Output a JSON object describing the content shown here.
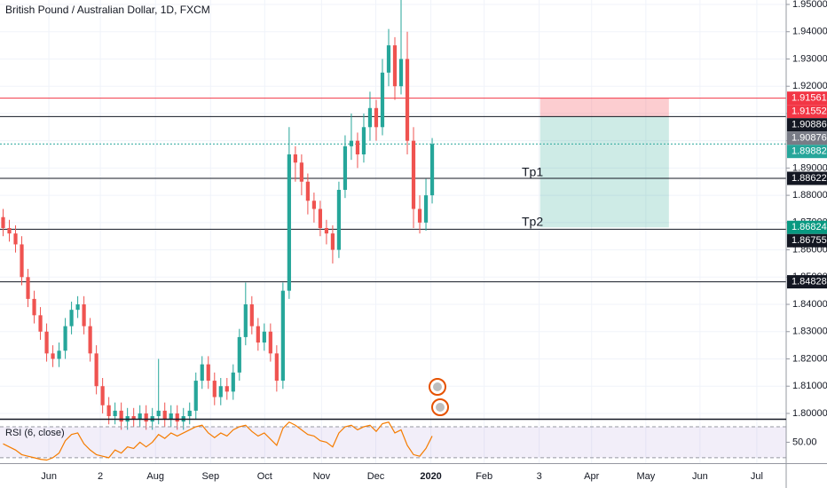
{
  "chart_data": {
    "type": "candlestick",
    "title": "British Pound / Australian Dollar, 1D, FXCM",
    "up_color": "#26a69a",
    "down_color": "#ef5350",
    "xlim": [
      0,
      126.43
    ],
    "xticks": [
      {
        "value": 7.86,
        "label": "Jun"
      },
      {
        "value": 16.14,
        "label": "2"
      },
      {
        "value": 25,
        "label": "Aug"
      },
      {
        "value": 33.86,
        "label": "Sep"
      },
      {
        "value": 42.57,
        "label": "Oct"
      },
      {
        "value": 51.71,
        "label": "Nov"
      },
      {
        "value": 60.43,
        "label": "Dec"
      },
      {
        "value": 69.29,
        "label": "2020"
      },
      {
        "value": 77.86,
        "label": "Feb"
      },
      {
        "value": 86.71,
        "label": "3"
      },
      {
        "value": 95.14,
        "label": "Apr"
      },
      {
        "value": 103.86,
        "label": "May"
      },
      {
        "value": 112.57,
        "label": "Jun"
      },
      {
        "value": 121.71,
        "label": "Jul"
      }
    ],
    "ylim": [
      1.79803,
      1.95163
    ],
    "yticks": [
      {
        "value": 1.8,
        "label": "1.80000"
      },
      {
        "value": 1.81,
        "label": "1.81000"
      },
      {
        "value": 1.82,
        "label": "1.82000"
      },
      {
        "value": 1.83,
        "label": "1.83000"
      },
      {
        "value": 1.84,
        "label": "1.84000"
      },
      {
        "value": 1.85,
        "label": "1.85000"
      },
      {
        "value": 1.86,
        "label": "1.86000"
      },
      {
        "value": 1.87,
        "label": "1.87000"
      },
      {
        "value": 1.88,
        "label": "1.88000"
      },
      {
        "value": 1.89,
        "label": "1.89000"
      },
      {
        "value": 1.9,
        "label": "1.90000"
      },
      {
        "value": 1.91,
        "label": "1.91000"
      },
      {
        "value": 1.92,
        "label": "1.92000"
      },
      {
        "value": 1.93,
        "label": "1.93000"
      },
      {
        "value": 1.94,
        "label": "1.94000"
      },
      {
        "value": 1.95,
        "label": "1.95000"
      }
    ],
    "grid": true,
    "open": [
      1.872,
      1.868,
      1.866,
      1.862,
      1.85,
      1.842,
      1.836,
      1.83,
      1.822,
      1.82,
      1.823,
      1.832,
      1.838,
      1.84,
      1.832,
      1.822,
      1.81,
      1.803,
      1.799,
      1.801,
      1.797,
      1.799,
      1.798,
      1.8,
      1.797,
      1.799,
      1.801,
      1.798,
      1.8,
      1.797,
      1.799,
      1.801,
      1.812,
      1.818,
      1.812,
      1.806,
      1.81,
      1.808,
      1.815,
      1.828,
      1.84,
      1.832,
      1.826,
      1.83,
      1.822,
      1.812,
      1.845,
      1.895,
      1.892,
      1.885,
      1.878,
      1.875,
      1.868,
      1.866,
      1.86,
      1.882,
      1.898,
      1.9,
      1.895,
      1.905,
      1.912,
      1.905,
      1.925,
      1.935,
      1.92,
      1.93,
      1.9,
      1.875,
      1.87,
      1.88
    ],
    "high": [
      1.875,
      1.871,
      1.869,
      1.865,
      1.853,
      1.845,
      1.839,
      1.833,
      1.825,
      1.826,
      1.835,
      1.841,
      1.843,
      1.843,
      1.835,
      1.825,
      1.813,
      1.806,
      1.804,
      1.804,
      1.802,
      1.802,
      1.803,
      1.803,
      1.802,
      1.82,
      1.804,
      1.803,
      1.803,
      1.802,
      1.804,
      1.815,
      1.821,
      1.821,
      1.815,
      1.813,
      1.813,
      1.818,
      1.831,
      1.848,
      1.843,
      1.835,
      1.833,
      1.833,
      1.825,
      1.848,
      1.905,
      1.898,
      1.895,
      1.888,
      1.881,
      1.878,
      1.871,
      1.869,
      1.885,
      1.902,
      1.91,
      1.903,
      1.91,
      1.918,
      1.915,
      1.93,
      1.941,
      1.938,
      1.952,
      1.94,
      1.905,
      1.88,
      1.886,
      1.901
    ],
    "low": [
      1.865,
      1.863,
      1.859,
      1.847,
      1.839,
      1.833,
      1.827,
      1.819,
      1.817,
      1.817,
      1.82,
      1.829,
      1.835,
      1.829,
      1.819,
      1.807,
      1.8,
      1.796,
      1.796,
      1.794,
      1.794,
      1.795,
      1.795,
      1.794,
      1.794,
      1.796,
      1.795,
      1.795,
      1.794,
      1.794,
      1.796,
      1.798,
      1.809,
      1.809,
      1.803,
      1.803,
      1.805,
      1.805,
      1.812,
      1.825,
      1.829,
      1.823,
      1.823,
      1.819,
      1.808,
      1.809,
      1.842,
      1.885,
      1.88,
      1.873,
      1.87,
      1.865,
      1.862,
      1.855,
      1.857,
      1.879,
      1.893,
      1.89,
      1.892,
      1.9,
      1.9,
      1.902,
      1.92,
      1.915,
      1.917,
      1.895,
      1.868,
      1.866,
      1.867,
      1.877
    ],
    "close": [
      1.868,
      1.866,
      1.862,
      1.85,
      1.842,
      1.836,
      1.83,
      1.822,
      1.82,
      1.823,
      1.832,
      1.838,
      1.84,
      1.832,
      1.822,
      1.81,
      1.803,
      1.799,
      1.801,
      1.797,
      1.799,
      1.798,
      1.8,
      1.797,
      1.799,
      1.801,
      1.798,
      1.8,
      1.797,
      1.799,
      1.801,
      1.812,
      1.818,
      1.812,
      1.806,
      1.81,
      1.808,
      1.815,
      1.828,
      1.84,
      1.832,
      1.826,
      1.83,
      1.822,
      1.812,
      1.845,
      1.895,
      1.892,
      1.885,
      1.878,
      1.875,
      1.868,
      1.866,
      1.86,
      1.882,
      1.898,
      1.9,
      1.895,
      1.905,
      1.912,
      1.905,
      1.925,
      1.935,
      1.92,
      1.93,
      1.9,
      1.875,
      1.87,
      1.88,
      1.8988
    ],
    "price_tags": [
      {
        "value": 1.91561,
        "color": "#f23645",
        "line": "solid"
      },
      {
        "value": 1.91552,
        "color": "#f23645"
      },
      {
        "value": 1.90886,
        "color": "#131722",
        "line": "solid"
      },
      {
        "value": 1.90876,
        "color": "#787b86"
      },
      {
        "value": 1.89882,
        "color": "#26a69a",
        "line": "dotted"
      },
      {
        "value": 1.88622,
        "color": "#131722",
        "line": "solid"
      },
      {
        "value": 1.86824,
        "color": "#089981"
      },
      {
        "value": 1.86755,
        "color": "#131722",
        "line": "solid"
      },
      {
        "value": 1.84828,
        "color": "#131722",
        "line": "solid"
      }
    ],
    "position": {
      "x_start": 86.86,
      "x_end": 107.57,
      "stop": 1.91561,
      "entry": 1.90886,
      "target": 1.86824
    },
    "annotations": [
      "Tp1",
      "Tp2"
    ],
    "rsi": {
      "title": "RSI (6, close)",
      "color": "#f57c00",
      "ylim": [
        23,
        78
      ],
      "yticks": [
        {
          "value": 50,
          "label": "50.00"
        }
      ],
      "bands": [
        30,
        70
      ],
      "values": [
        48,
        44,
        40,
        34,
        32,
        30,
        28,
        27,
        30,
        36,
        52,
        60,
        62,
        48,
        40,
        34,
        32,
        30,
        40,
        36,
        44,
        42,
        50,
        44,
        50,
        60,
        55,
        62,
        58,
        62,
        66,
        70,
        72,
        62,
        56,
        62,
        58,
        66,
        70,
        72,
        64,
        58,
        62,
        54,
        46,
        68,
        76,
        72,
        66,
        60,
        58,
        52,
        50,
        44,
        62,
        70,
        72,
        66,
        70,
        72,
        64,
        74,
        76,
        62,
        66,
        46,
        34,
        32,
        42,
        58
      ]
    }
  }
}
